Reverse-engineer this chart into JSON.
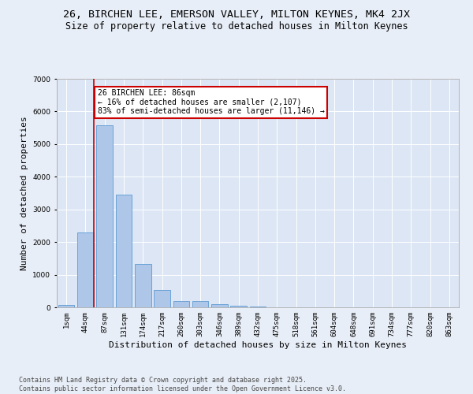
{
  "title": "26, BIRCHEN LEE, EMERSON VALLEY, MILTON KEYNES, MK4 2JX",
  "subtitle": "Size of property relative to detached houses in Milton Keynes",
  "xlabel": "Distribution of detached houses by size in Milton Keynes",
  "ylabel": "Number of detached properties",
  "categories": [
    "1sqm",
    "44sqm",
    "87sqm",
    "131sqm",
    "174sqm",
    "217sqm",
    "260sqm",
    "303sqm",
    "346sqm",
    "389sqm",
    "432sqm",
    "475sqm",
    "518sqm",
    "561sqm",
    "604sqm",
    "648sqm",
    "691sqm",
    "734sqm",
    "777sqm",
    "820sqm",
    "863sqm"
  ],
  "values": [
    70,
    2300,
    5580,
    3450,
    1330,
    530,
    200,
    185,
    90,
    60,
    20,
    5,
    2,
    1,
    0,
    0,
    0,
    0,
    0,
    0,
    0
  ],
  "bar_color": "#aec6e8",
  "bar_edge_color": "#5b9bd5",
  "property_line_color": "#cc0000",
  "property_line_x": 1.43,
  "annotation_text": "26 BIRCHEN LEE: 86sqm\n← 16% of detached houses are smaller (2,107)\n83% of semi-detached houses are larger (11,146) →",
  "annotation_box_color": "#cc0000",
  "annotation_text_color": "#000000",
  "ylim": [
    0,
    7000
  ],
  "background_color": "#e8eef7",
  "plot_bg_color": "#dce6f4",
  "grid_color": "#ffffff",
  "footer_text": "Contains HM Land Registry data © Crown copyright and database right 2025.\nContains public sector information licensed under the Open Government Licence v3.0.",
  "title_fontsize": 9.5,
  "subtitle_fontsize": 8.5,
  "tick_fontsize": 6.5,
  "ylabel_fontsize": 8,
  "xlabel_fontsize": 8,
  "annotation_fontsize": 7,
  "footer_fontsize": 6
}
